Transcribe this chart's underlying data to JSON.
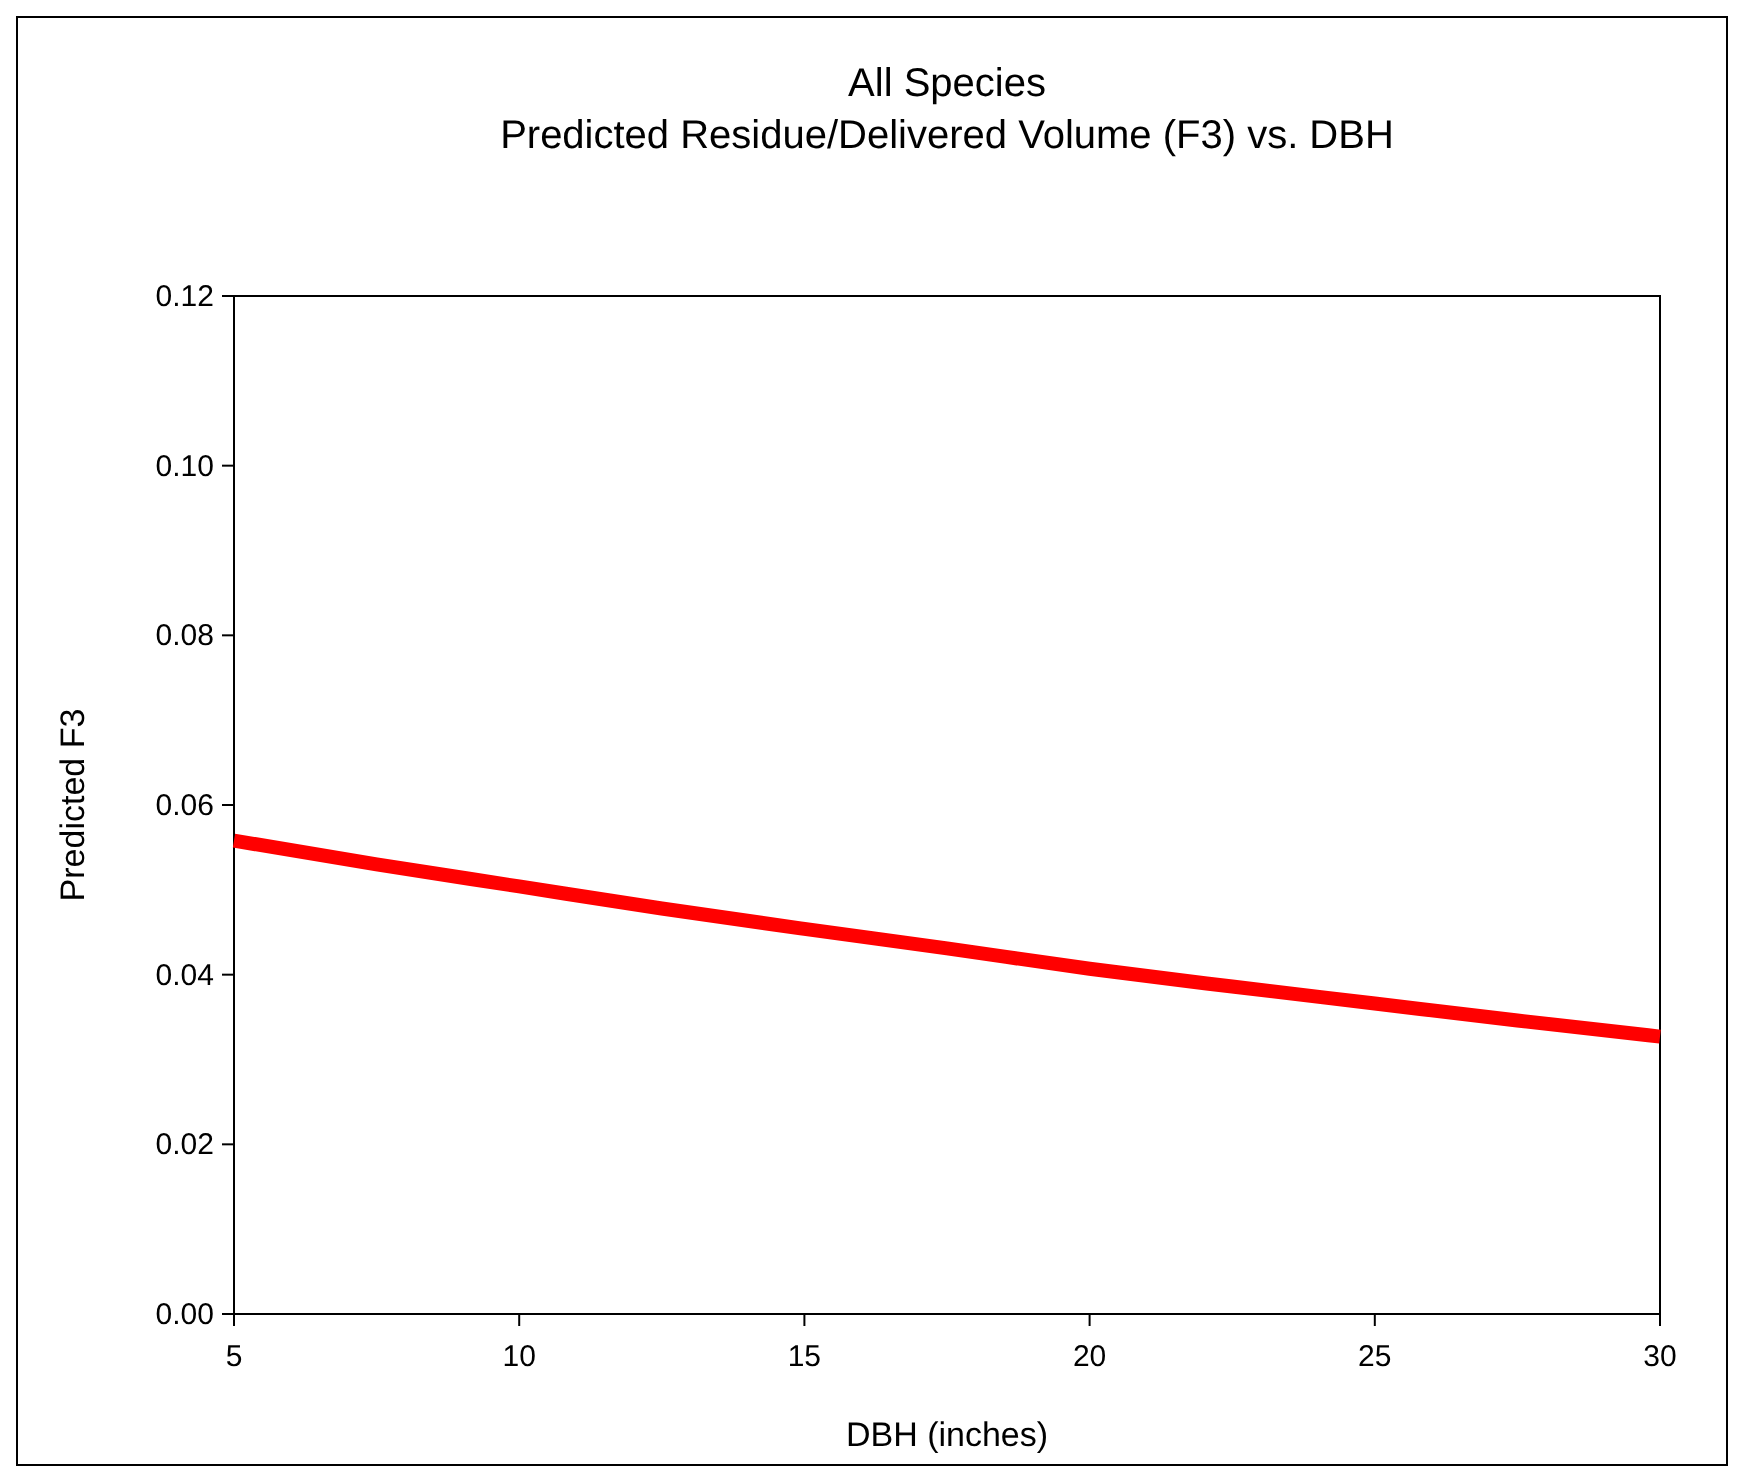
{
  "chart_data": {
    "type": "line",
    "title": "All Species",
    "subtitle": "Predicted Residue/Delivered Volume (F3) vs. DBH",
    "xlabel": "DBH (inches)",
    "ylabel": "Predicted F3",
    "x": [
      5,
      7.5,
      10,
      12.5,
      15,
      17.5,
      20,
      22.5,
      25,
      27.5,
      30
    ],
    "series": [
      {
        "color": "#ff0000",
        "values": [
          0.0558,
          0.053,
          0.0504,
          0.0478,
          0.0454,
          0.0431,
          0.0407,
          0.0386,
          0.0366,
          0.0346,
          0.0327
        ]
      }
    ],
    "xlim": [
      5,
      30
    ],
    "xticks": [
      5,
      10,
      15,
      20,
      25,
      30
    ],
    "ylim": [
      0,
      0.12
    ],
    "yticks": [
      {
        "value": 0,
        "label": "0.00"
      },
      {
        "value": 0.02,
        "label": "0.02"
      },
      {
        "value": 0.04,
        "label": "0.04"
      },
      {
        "value": 0.06,
        "label": "0.06"
      },
      {
        "value": 0.08,
        "label": "0.08"
      },
      {
        "value": 0.1,
        "label": "0.10"
      },
      {
        "value": 0.12,
        "label": "0.12"
      }
    ],
    "grid": false,
    "marker": "none",
    "line_style": "solid"
  }
}
